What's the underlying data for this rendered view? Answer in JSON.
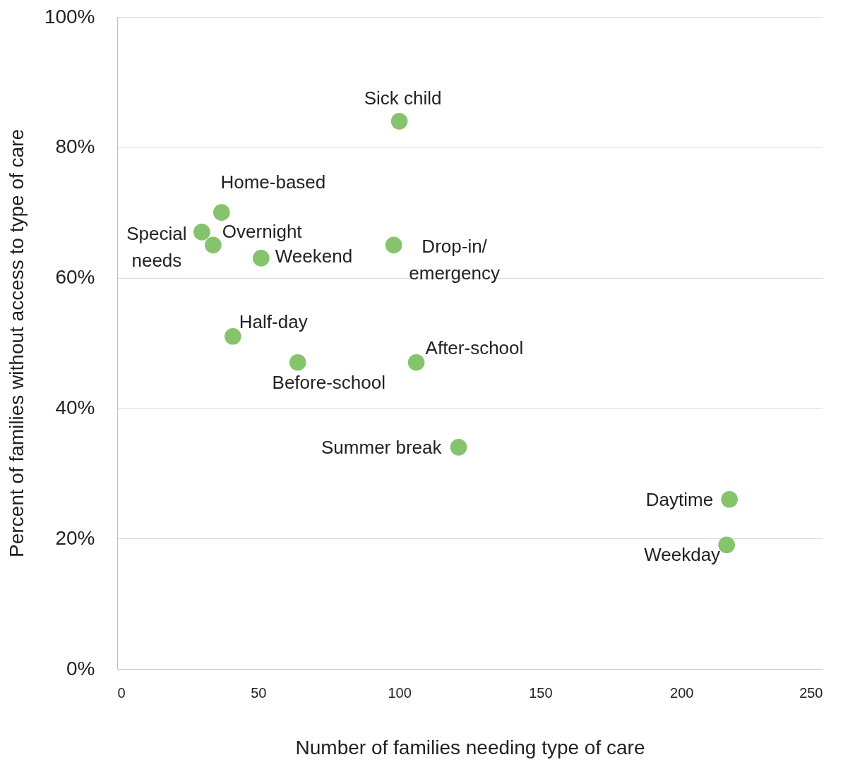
{
  "chart_data": {
    "type": "scatter",
    "xlabel": "Number of families needing type of care",
    "ylabel": "Percent of families without access to type of care",
    "x": [
      100,
      37,
      30,
      34,
      51,
      98,
      41,
      64,
      106,
      121,
      217,
      216
    ],
    "series": [
      {
        "color": "#85c46c",
        "values": [
          84,
          70,
          67,
          65,
          63,
          65,
          51,
          47,
          47,
          34,
          26,
          19
        ]
      }
    ],
    "xlim": [
      0,
      250
    ],
    "xticks": [
      0,
      50,
      100,
      150,
      200,
      250
    ],
    "ylim": [
      0,
      100
    ],
    "yticks": [
      {
        "value": 0,
        "label": "0%"
      },
      {
        "value": 20,
        "label": "20%"
      },
      {
        "value": 40,
        "label": "40%"
      },
      {
        "value": 60,
        "label": "60%"
      },
      {
        "value": 80,
        "label": "80%"
      },
      {
        "value": 100,
        "label": "100%"
      }
    ],
    "grid": "y",
    "marker": "circle",
    "annotations": [
      {
        "text": "Sick child",
        "x": 100,
        "y": 84
      },
      {
        "text": "Home-based",
        "x": 37,
        "y": 70
      },
      {
        "text": "Special\nneeds",
        "x": 30,
        "y": 67
      },
      {
        "text": "Overnight",
        "x": 34,
        "y": 65
      },
      {
        "text": "Weekend",
        "x": 51,
        "y": 63
      },
      {
        "text": "Drop-in/\nemergency",
        "x": 98,
        "y": 65
      },
      {
        "text": "Half-day",
        "x": 41,
        "y": 51
      },
      {
        "text": "Before-school",
        "x": 64,
        "y": 47
      },
      {
        "text": "After-school",
        "x": 106,
        "y": 47
      },
      {
        "text": "Summer break",
        "x": 121,
        "y": 34
      },
      {
        "text": "Daytime",
        "x": 217,
        "y": 26
      },
      {
        "text": "Weekday",
        "x": 216,
        "y": 19
      }
    ]
  }
}
